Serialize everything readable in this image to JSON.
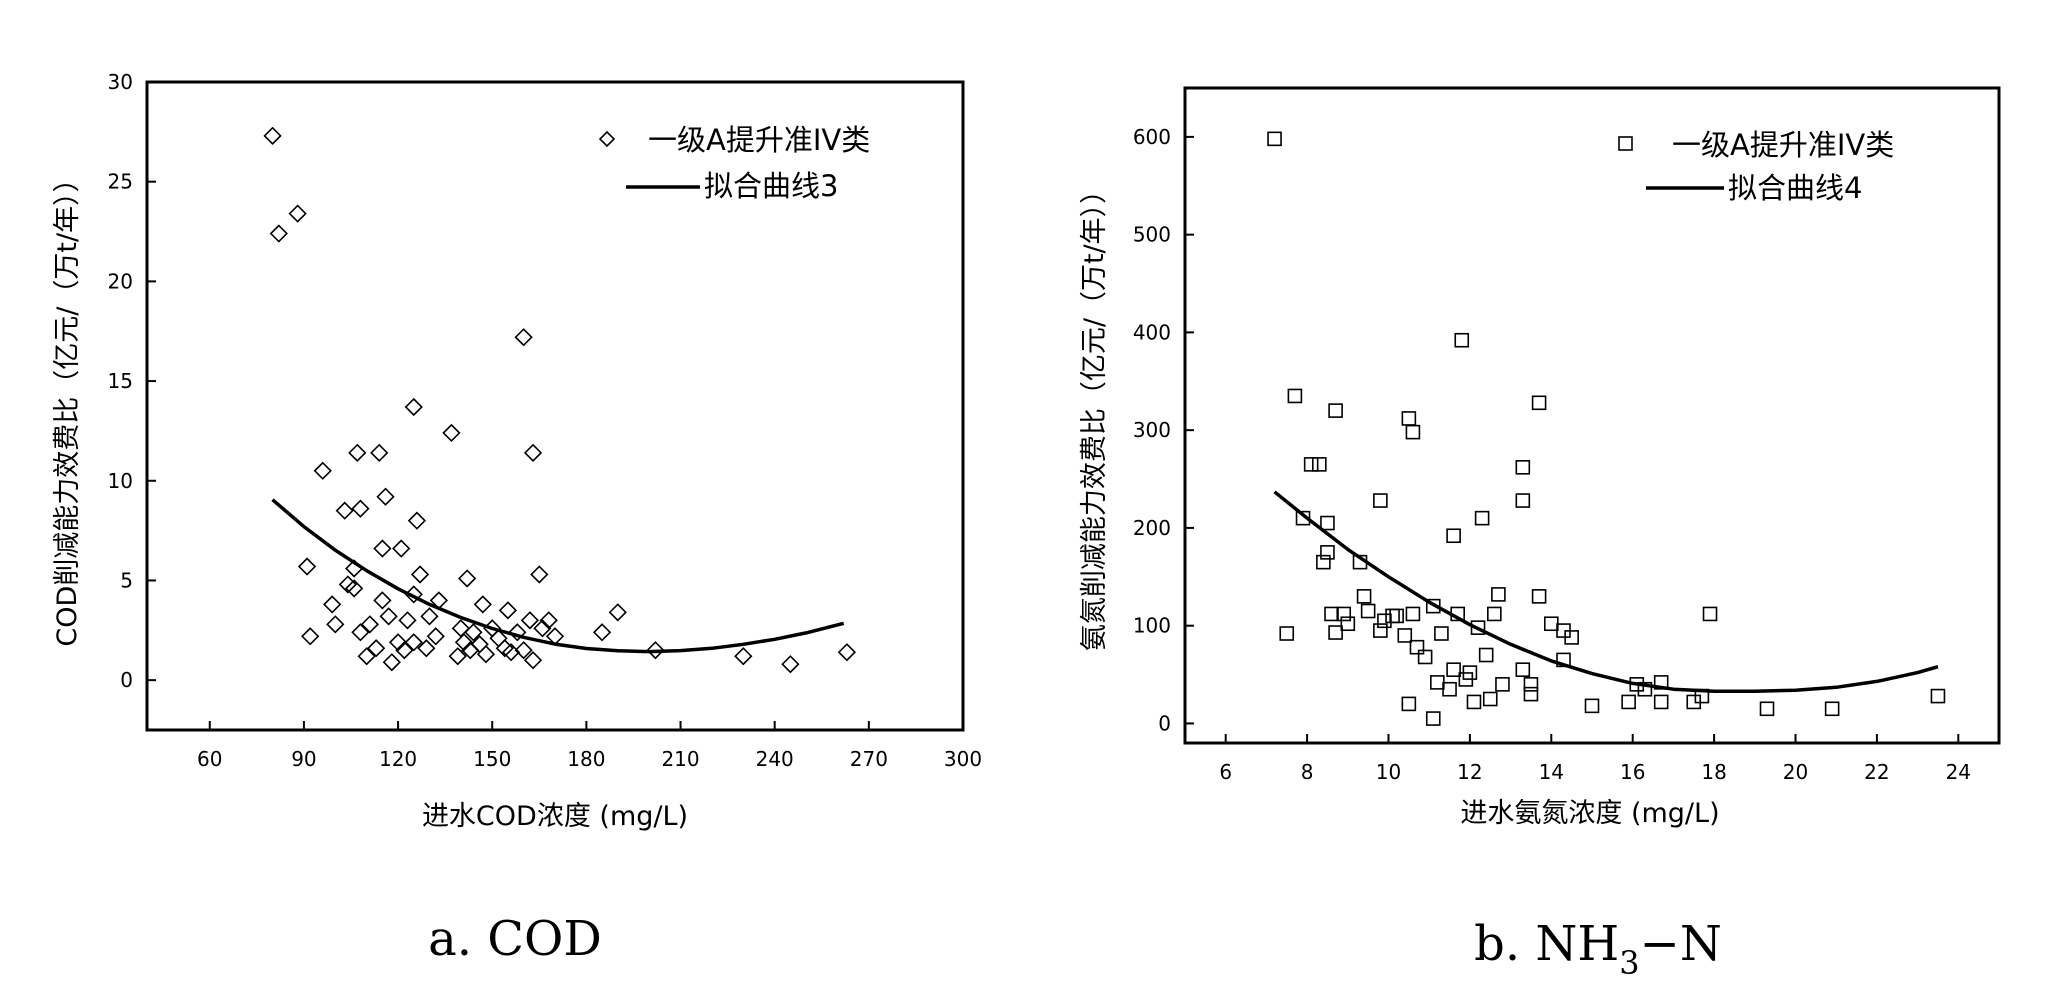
{
  "chart_data": [
    {
      "type": "scatter",
      "caption": "a. COD",
      "xlabel": "进水COD浓度 (mg/L)",
      "ylabel": "COD削减能力效费比（亿元/（万t/年））",
      "xlim": [
        40,
        300
      ],
      "ylim": [
        -2.5,
        30
      ],
      "xticks": [
        60,
        90,
        120,
        150,
        180,
        210,
        240,
        270,
        300
      ],
      "yticks": [
        0,
        5,
        10,
        15,
        20,
        25,
        30
      ],
      "marker": "diamond",
      "grid": false,
      "legend_position": "top-right",
      "series": [
        {
          "name": "一级A提升准IV类",
          "kind": "scatter",
          "points": [
            [
              80,
              27.3
            ],
            [
              82,
              22.4
            ],
            [
              88,
              23.4
            ],
            [
              96,
              10.5
            ],
            [
              107,
              11.4
            ],
            [
              114,
              11.4
            ],
            [
              125,
              13.7
            ],
            [
              137,
              12.4
            ],
            [
              160,
              17.2
            ],
            [
              163,
              11.4
            ],
            [
              91,
              5.7
            ],
            [
              92,
              2.2
            ],
            [
              99,
              3.8
            ],
            [
              100,
              2.8
            ],
            [
              103,
              8.5
            ],
            [
              104,
              4.8
            ],
            [
              106,
              5.6
            ],
            [
              106,
              4.6
            ],
            [
              108,
              2.4
            ],
            [
              108,
              8.6
            ],
            [
              110,
              1.2
            ],
            [
              111,
              2.8
            ],
            [
              113,
              1.6
            ],
            [
              115,
              6.6
            ],
            [
              115,
              4.0
            ],
            [
              116,
              9.2
            ],
            [
              117,
              3.2
            ],
            [
              118,
              0.9
            ],
            [
              120,
              1.9
            ],
            [
              121,
              6.6
            ],
            [
              122,
              1.5
            ],
            [
              123,
              3.0
            ],
            [
              125,
              4.3
            ],
            [
              125,
              1.9
            ],
            [
              126,
              8.0
            ],
            [
              127,
              5.3
            ],
            [
              129,
              1.6
            ],
            [
              130,
              3.2
            ],
            [
              132,
              2.2
            ],
            [
              133,
              4.0
            ],
            [
              139,
              1.2
            ],
            [
              140,
              2.6
            ],
            [
              141,
              1.9
            ],
            [
              142,
              5.1
            ],
            [
              143,
              1.5
            ],
            [
              144,
              2.4
            ],
            [
              146,
              1.8
            ],
            [
              147,
              3.8
            ],
            [
              148,
              1.3
            ],
            [
              150,
              2.6
            ],
            [
              152,
              2.1
            ],
            [
              154,
              1.6
            ],
            [
              155,
              3.5
            ],
            [
              156,
              1.4
            ],
            [
              158,
              2.4
            ],
            [
              160,
              1.5
            ],
            [
              162,
              3.0
            ],
            [
              163,
              1.0
            ],
            [
              165,
              5.3
            ],
            [
              166,
              2.6
            ],
            [
              168,
              3.0
            ],
            [
              170,
              2.2
            ],
            [
              185,
              2.4
            ],
            [
              190,
              3.4
            ],
            [
              202,
              1.5
            ],
            [
              230,
              1.2
            ],
            [
              245,
              0.8
            ],
            [
              263,
              1.4
            ]
          ]
        },
        {
          "name": "拟合曲线3",
          "kind": "line",
          "points": [
            [
              80,
              9.05
            ],
            [
              90,
              7.7
            ],
            [
              100,
              6.52
            ],
            [
              110,
              5.49
            ],
            [
              120,
              4.58
            ],
            [
              130,
              3.8
            ],
            [
              140,
              3.14
            ],
            [
              150,
              2.59
            ],
            [
              160,
              2.15
            ],
            [
              170,
              1.81
            ],
            [
              180,
              1.59
            ],
            [
              190,
              1.47
            ],
            [
              200,
              1.43
            ],
            [
              210,
              1.48
            ],
            [
              220,
              1.6
            ],
            [
              230,
              1.8
            ],
            [
              240,
              2.05
            ],
            [
              250,
              2.37
            ],
            [
              262,
              2.85
            ]
          ]
        }
      ]
    },
    {
      "type": "scatter",
      "caption_main": "b. NH",
      "caption_sub": "3",
      "caption_tail": "−N",
      "xlabel": "进水氨氮浓度 (mg/L)",
      "ylabel": "氨氮削减能力效费比（亿元/（万t/年））",
      "xlim": [
        5,
        25
      ],
      "ylim": [
        -20,
        650
      ],
      "xticks": [
        6,
        8,
        10,
        12,
        14,
        16,
        18,
        20,
        22,
        24
      ],
      "yticks": [
        0,
        100,
        200,
        300,
        400,
        500,
        600
      ],
      "marker": "square",
      "grid": false,
      "legend_position": "top-right",
      "series": [
        {
          "name": "一级A提升准IV类",
          "kind": "scatter",
          "points": [
            [
              7.2,
              598
            ],
            [
              7.5,
              92
            ],
            [
              7.7,
              335
            ],
            [
              7.9,
              210
            ],
            [
              8.1,
              265
            ],
            [
              8.3,
              265
            ],
            [
              8.4,
              165
            ],
            [
              8.5,
              175
            ],
            [
              8.5,
              205
            ],
            [
              8.6,
              112
            ],
            [
              8.7,
              93
            ],
            [
              8.7,
              320
            ],
            [
              8.9,
              112
            ],
            [
              9.0,
              102
            ],
            [
              9.3,
              165
            ],
            [
              9.4,
              130
            ],
            [
              9.5,
              115
            ],
            [
              9.8,
              228
            ],
            [
              9.8,
              95
            ],
            [
              9.9,
              105
            ],
            [
              10.1,
              110
            ],
            [
              10.2,
              110
            ],
            [
              10.4,
              90
            ],
            [
              10.5,
              20
            ],
            [
              10.5,
              312
            ],
            [
              10.6,
              298
            ],
            [
              10.6,
              112
            ],
            [
              10.7,
              78
            ],
            [
              10.9,
              68
            ],
            [
              11.1,
              5
            ],
            [
              11.1,
              120
            ],
            [
              11.2,
              42
            ],
            [
              11.3,
              92
            ],
            [
              11.5,
              35
            ],
            [
              11.6,
              192
            ],
            [
              11.6,
              55
            ],
            [
              11.7,
              112
            ],
            [
              11.8,
              392
            ],
            [
              11.9,
              45
            ],
            [
              12.0,
              52
            ],
            [
              12.1,
              22
            ],
            [
              12.2,
              98
            ],
            [
              12.3,
              210
            ],
            [
              12.4,
              70
            ],
            [
              12.5,
              25
            ],
            [
              12.6,
              112
            ],
            [
              12.7,
              132
            ],
            [
              12.8,
              40
            ],
            [
              13.3,
              262
            ],
            [
              13.3,
              228
            ],
            [
              13.3,
              55
            ],
            [
              13.5,
              40
            ],
            [
              13.5,
              30
            ],
            [
              13.7,
              328
            ],
            [
              13.7,
              130
            ],
            [
              14.0,
              102
            ],
            [
              14.3,
              95
            ],
            [
              14.3,
              65
            ],
            [
              14.5,
              88
            ],
            [
              15.0,
              18
            ],
            [
              15.9,
              22
            ],
            [
              16.1,
              40
            ],
            [
              16.3,
              35
            ],
            [
              16.7,
              42
            ],
            [
              16.7,
              22
            ],
            [
              17.5,
              22
            ],
            [
              17.7,
              28
            ],
            [
              17.9,
              112
            ],
            [
              19.3,
              15
            ],
            [
              20.9,
              15
            ],
            [
              23.5,
              28
            ]
          ]
        },
        {
          "name": "拟合曲线4",
          "kind": "line",
          "points": [
            [
              7.2,
              237
            ],
            [
              8,
              210
            ],
            [
              9,
              178
            ],
            [
              10,
              150
            ],
            [
              11,
              124
            ],
            [
              12,
              101
            ],
            [
              13,
              81
            ],
            [
              14,
              64
            ],
            [
              15,
              51
            ],
            [
              16,
              41
            ],
            [
              17,
              35
            ],
            [
              18,
              33
            ],
            [
              19,
              33
            ],
            [
              20,
              34
            ],
            [
              21,
              37
            ],
            [
              22,
              43
            ],
            [
              23,
              52
            ],
            [
              23.5,
              58
            ]
          ]
        }
      ]
    }
  ]
}
